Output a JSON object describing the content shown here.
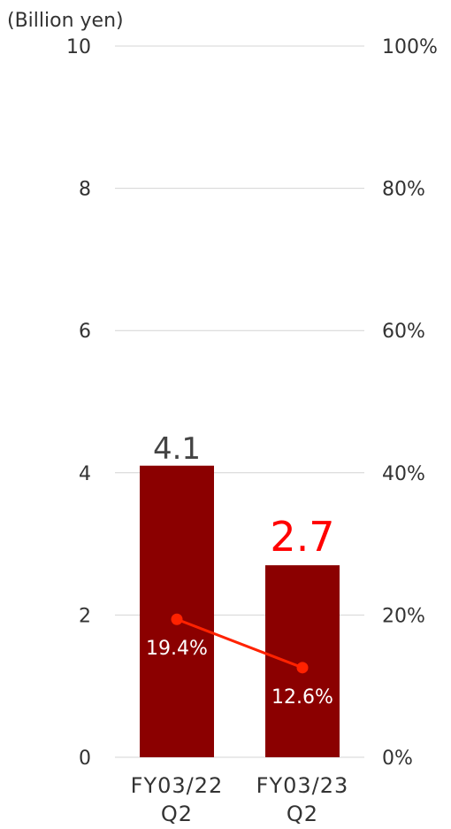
{
  "chart_data": {
    "type": "bar",
    "unit_label": "(Billion yen)",
    "categories": [
      [
        "FY03/22",
        "Q2"
      ],
      [
        "FY03/23",
        "Q2"
      ]
    ],
    "series": [
      {
        "type": "bar",
        "values": [
          4.1,
          2.7
        ],
        "labels": [
          "4.1",
          "2.7"
        ],
        "color": "#8B0000",
        "label_colors": [
          "#444444",
          "#FF0000"
        ]
      },
      {
        "type": "line",
        "axis": "right",
        "values": [
          19.4,
          12.6
        ],
        "labels": [
          "19.4%",
          "12.6%"
        ],
        "color": "#FF2200"
      }
    ],
    "y_left": {
      "ylim": [
        0,
        10
      ],
      "ticks": [
        "0",
        "2",
        "4",
        "6",
        "8",
        "10"
      ]
    },
    "y_right": {
      "ylim": [
        0,
        100
      ],
      "ticks": [
        "0%",
        "20%",
        "40%",
        "60%",
        "80%",
        "100%"
      ]
    },
    "grid": true,
    "legend": "none"
  }
}
